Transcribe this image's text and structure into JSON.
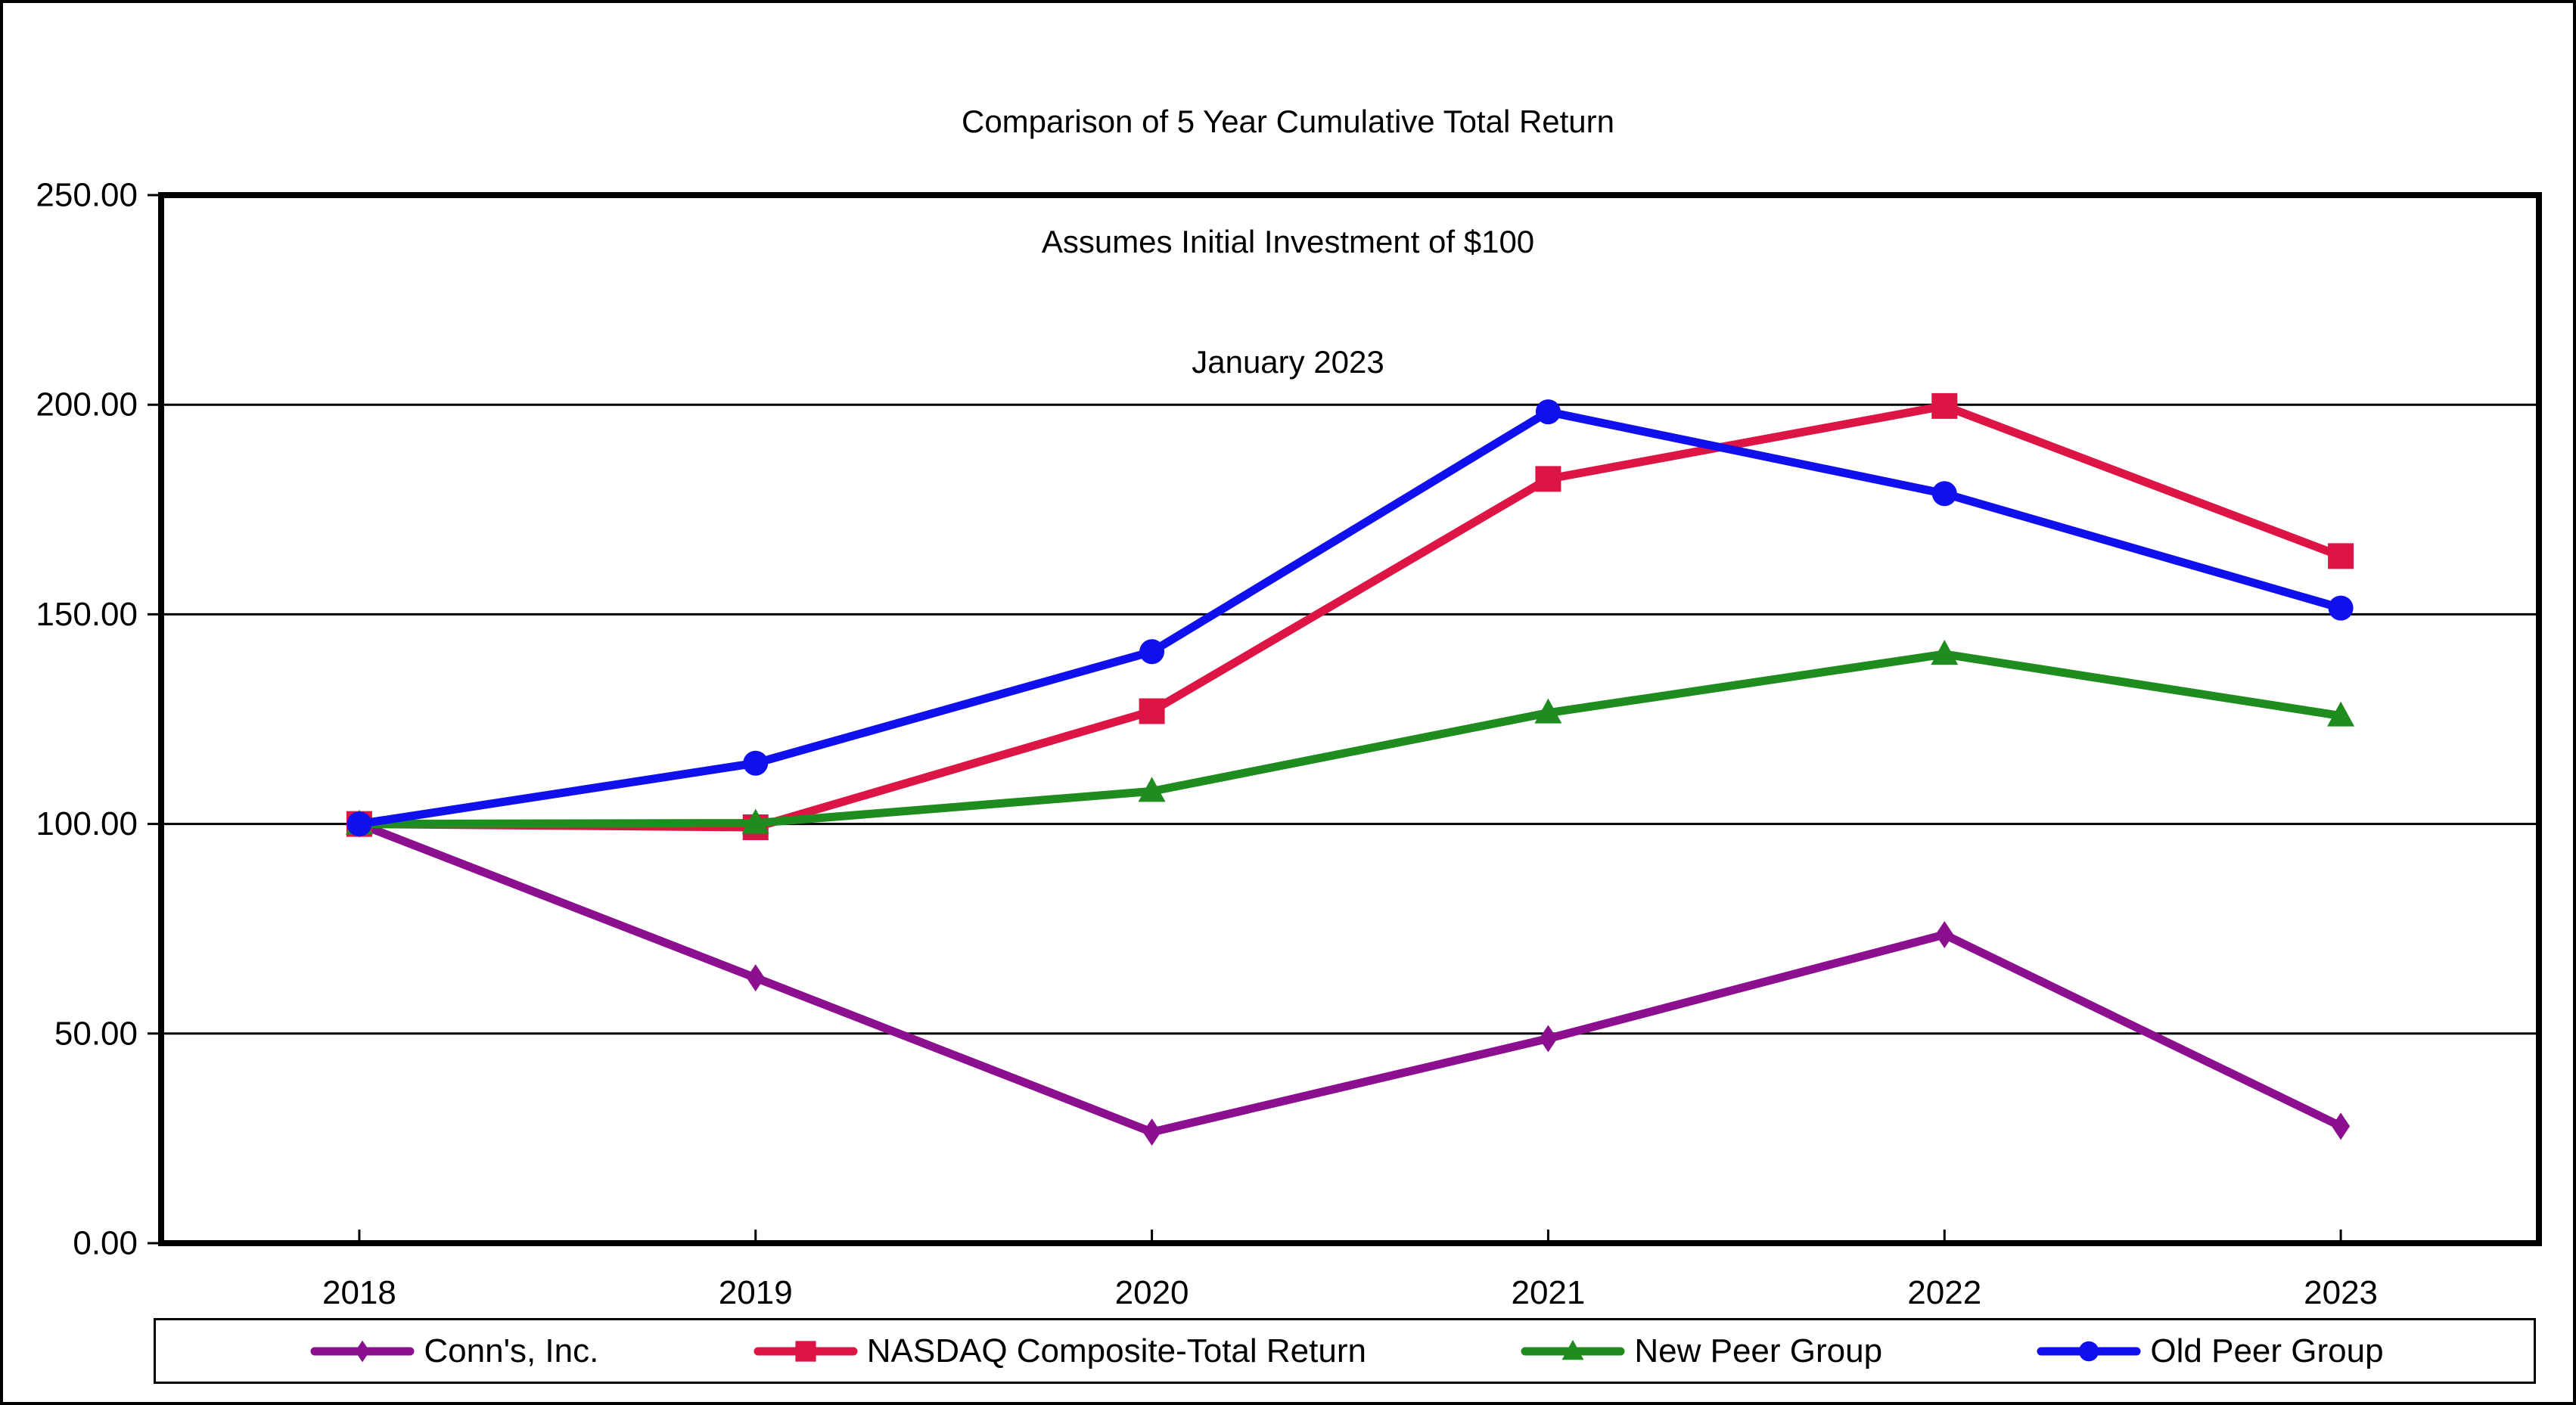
{
  "chart_data": {
    "type": "line",
    "title": "Comparison of 5 Year Cumulative Total Return",
    "subtitle": "Assumes Initial Investment of $100",
    "period": "January 2023",
    "categories": [
      "2018",
      "2019",
      "2020",
      "2021",
      "2022",
      "2023"
    ],
    "series": [
      {
        "name": "Conn's, Inc.",
        "color": "#8C0F8F",
        "marker": "diamond",
        "values": [
          100.0,
          63.3,
          26.5,
          48.8,
          73.6,
          27.9
        ]
      },
      {
        "name": "NASDAQ Composite-Total Return",
        "color": "#DD1545",
        "marker": "square",
        "values": [
          100.0,
          99.2,
          126.9,
          182.3,
          199.7,
          163.9
        ]
      },
      {
        "name": "New Peer Group",
        "color": "#1E8C1E",
        "marker": "triangle",
        "values": [
          100.0,
          100.2,
          107.8,
          126.5,
          140.5,
          125.8
        ]
      },
      {
        "name": "Old Peer Group",
        "color": "#1010EE",
        "marker": "circle",
        "values": [
          100.0,
          114.5,
          141.1,
          198.3,
          178.8,
          151.5
        ]
      }
    ],
    "ylim": [
      0,
      250
    ],
    "y_ticks": {
      "values": [
        0,
        50,
        100,
        150,
        200,
        250
      ],
      "labels": [
        "0.00",
        "50.00",
        "100.00",
        "150.00",
        "200.00",
        "250.00"
      ]
    },
    "grid": "horizontal",
    "legend_position": "bottom"
  }
}
